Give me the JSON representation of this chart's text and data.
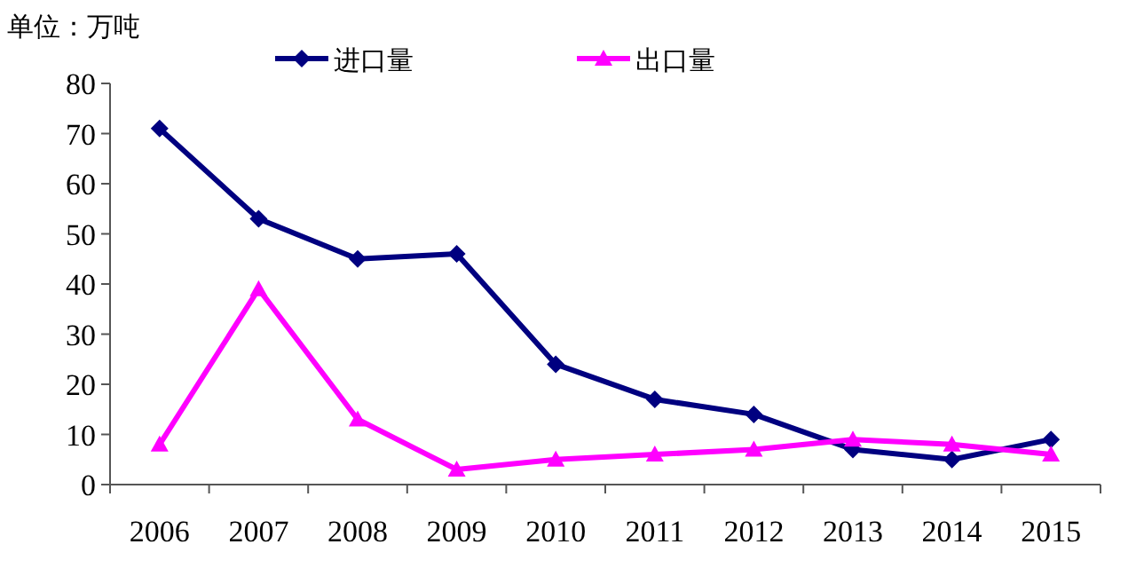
{
  "chart_data": {
    "type": "line",
    "ylabel": "单位：万吨",
    "categories": [
      "2006",
      "2007",
      "2008",
      "2009",
      "2010",
      "2011",
      "2012",
      "2013",
      "2014",
      "2015"
    ],
    "series": [
      {
        "name": "进口量",
        "color": "#000080",
        "marker": "diamond",
        "values": [
          71,
          53,
          45,
          46,
          24,
          17,
          14,
          7,
          5,
          9
        ]
      },
      {
        "name": "出口量",
        "color": "#ff00ff",
        "marker": "triangle",
        "values": [
          8,
          39,
          13,
          3,
          5,
          6,
          7,
          9,
          8,
          6
        ]
      }
    ],
    "ylim": [
      0,
      80
    ],
    "yticks": [
      0,
      10,
      20,
      30,
      40,
      50,
      60,
      70,
      80
    ],
    "grid": false,
    "legend": "top"
  }
}
